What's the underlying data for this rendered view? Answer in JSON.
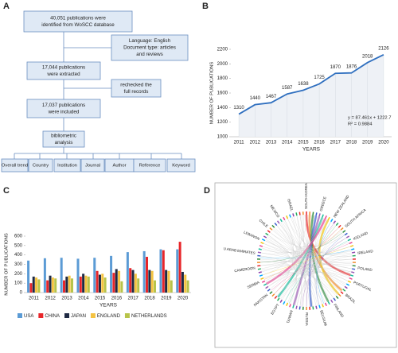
{
  "panel_labels": [
    "A",
    "B",
    "C",
    "D"
  ],
  "flowchart": {
    "nodes": [
      {
        "lines": [
          "40,051 publications were",
          "identified from WoSCC database"
        ]
      },
      {
        "lines": [
          "Language: English",
          "Document type: articles",
          "and reviews"
        ]
      },
      {
        "lines": [
          "17,044 publications",
          "were extracted"
        ]
      },
      {
        "lines": [
          "rechecked the",
          "full records"
        ]
      },
      {
        "lines": [
          "17,037 publications",
          "were included"
        ]
      },
      {
        "lines": [
          "bibliometric",
          "analysis"
        ]
      }
    ],
    "outputs": [
      "Overall trend",
      "Country",
      "Institution",
      "Journal",
      "Author",
      "Reference",
      "Keyword"
    ]
  },
  "chart_data": [
    {
      "type": "line",
      "x": [
        "2011",
        "2012",
        "2013",
        "2014",
        "2015",
        "2016",
        "2017",
        "2018",
        "2019",
        "2020"
      ],
      "series": [
        {
          "name": "NUMBER OF PUBLICATIONS",
          "color": "#2f6fbf",
          "values": [
            1310,
            1440,
            1467,
            1587,
            1638,
            1725,
            1870,
            1876,
            2018,
            2126
          ]
        }
      ],
      "xlabel": "YEARS",
      "ylabel": "NUMBER OF PUBLICATIONS",
      "ylim": [
        1000,
        2200
      ],
      "yticks": [
        1000,
        1200,
        1400,
        1600,
        1800,
        2000,
        2200
      ],
      "annotations": [
        "y = 87.461x + 1222.7",
        "R² = 0.9884"
      ],
      "grid": false
    },
    {
      "type": "bar",
      "categories": [
        "2011",
        "2012",
        "2013",
        "2014",
        "2015",
        "2016",
        "2017",
        "2018",
        "2019",
        "2020"
      ],
      "series": [
        {
          "name": "USA",
          "color": "#5b9bd5",
          "values": [
            340,
            365,
            370,
            360,
            370,
            390,
            430,
            440,
            460,
            460
          ]
        },
        {
          "name": "CHINA",
          "color": "#e8262a",
          "values": [
            100,
            130,
            130,
            170,
            230,
            210,
            260,
            380,
            450,
            540
          ]
        },
        {
          "name": "JAPAN",
          "color": "#1f2a44",
          "values": [
            170,
            180,
            170,
            200,
            190,
            250,
            240,
            240,
            240,
            220
          ]
        },
        {
          "name": "ENGLAND",
          "color": "#f5c342",
          "values": [
            160,
            160,
            180,
            180,
            200,
            230,
            200,
            230,
            230,
            190
          ]
        },
        {
          "name": "NETHERLANDS",
          "color": "#b8c44a",
          "values": [
            140,
            150,
            150,
            170,
            160,
            120,
            150,
            130,
            130,
            130
          ]
        }
      ],
      "xlabel": "YEARS",
      "ylabel": "NUMBER OF PUBLICATIONS",
      "ylim": [
        0,
        600
      ],
      "yticks": [
        0,
        100,
        200,
        300,
        400,
        500,
        600
      ],
      "legend": "bottom",
      "grid": false
    }
  ],
  "chord": {
    "labels": [
      "SOUTH KOREA",
      "GREECE",
      "NEW ZEALAND",
      "SOUTH AFRICA",
      "ICELAND",
      "IRELAND",
      "POLAND",
      "PORTUGAL",
      "BRAZIL",
      "FINLAND",
      "BELGIUM",
      "RUSSIA",
      "TAIWAN",
      "EGYPT",
      "PAKISTAN",
      "SERBIA",
      "CAMEROON",
      "U ARAB EMIRATES",
      "LEBANON",
      "CHILE",
      "MEXICO",
      "ISRAEL"
    ]
  }
}
